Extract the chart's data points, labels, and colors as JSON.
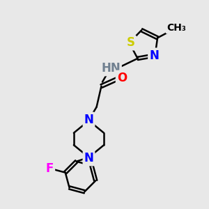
{
  "background_color": "#e8e8e8",
  "N_color": "#0000FF",
  "O_color": "#FF0000",
  "S_color": "#CCCC00",
  "F_color": "#FF00FF",
  "C_color": "#000000",
  "H_color": "#708090",
  "bond_color": "#000000",
  "bond_width": 1.8,
  "font_size": 12,
  "font_size_small": 10,
  "xlim": [
    0,
    10
  ],
  "ylim": [
    0,
    10
  ]
}
